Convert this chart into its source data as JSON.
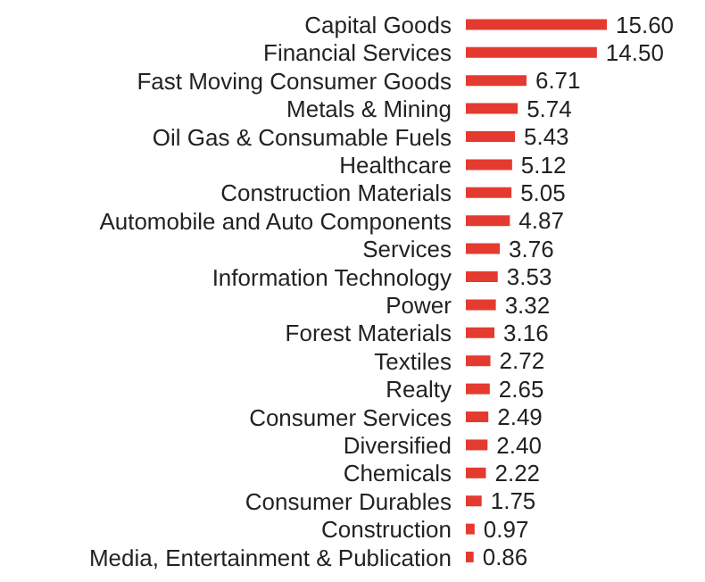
{
  "chart_data": {
    "type": "bar",
    "orientation": "horizontal",
    "categories": [
      "Capital Goods",
      "Financial Services",
      "Fast Moving Consumer Goods",
      "Metals & Mining",
      "Oil Gas & Consumable Fuels",
      "Healthcare",
      "Construction Materials",
      "Automobile and Auto Components",
      "Services",
      "Information Technology",
      "Power",
      "Forest Materials",
      "Textiles",
      "Realty",
      "Consumer Services",
      "Diversified",
      "Chemicals",
      "Consumer Durables",
      "Construction",
      "Media, Entertainment & Publication"
    ],
    "values": [
      15.6,
      14.5,
      6.71,
      5.74,
      5.43,
      5.12,
      5.05,
      4.87,
      3.76,
      3.53,
      3.32,
      3.16,
      2.72,
      2.65,
      2.49,
      2.4,
      2.22,
      1.75,
      0.97,
      0.86
    ],
    "value_labels": [
      "15.60",
      "14.50",
      "6.71",
      "5.74",
      "5.43",
      "5.12",
      "5.05",
      "4.87",
      "3.76",
      "3.53",
      "3.32",
      "3.16",
      "2.72",
      "2.65",
      "2.49",
      "2.40",
      "2.22",
      "1.75",
      "0.97",
      "0.86"
    ],
    "color": "#e53a2f"
  }
}
